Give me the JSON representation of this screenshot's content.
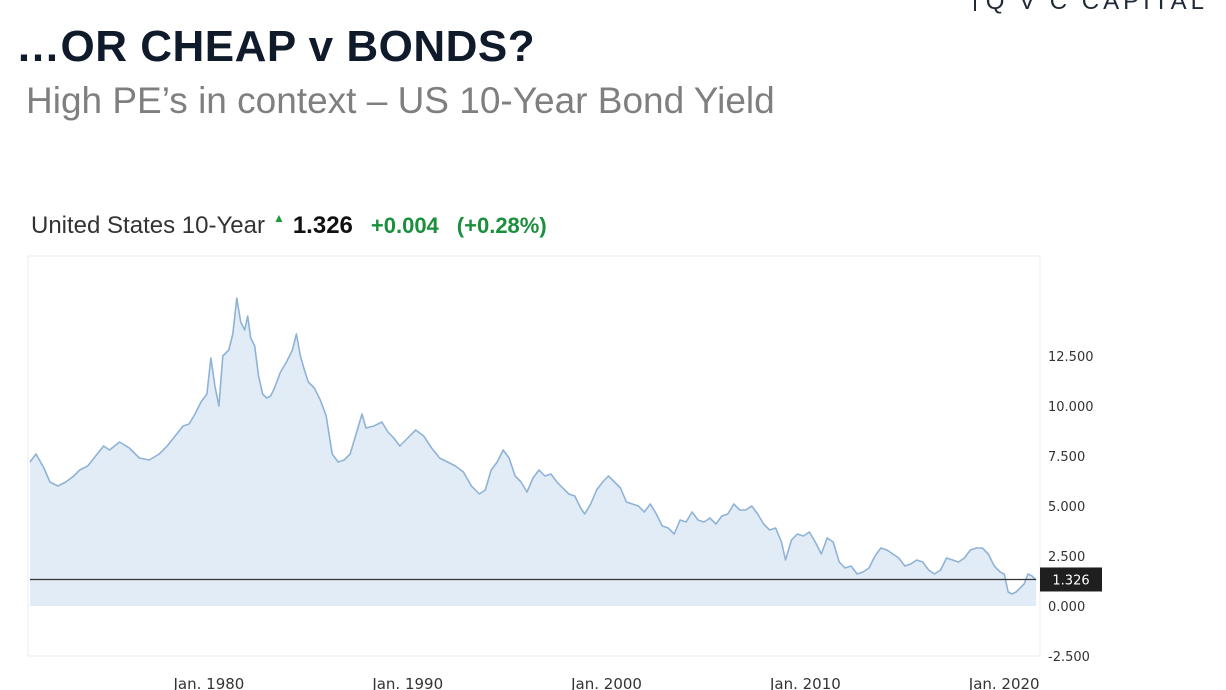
{
  "brand": "Q V C CAPITAL",
  "slide": {
    "title": "…OR CHEAP v BONDS?",
    "subtitle": "High PE’s in context – US 10-Year Bond Yield"
  },
  "quote": {
    "name": "United States 10-Year",
    "value": "1.326",
    "change": "+0.004",
    "change_pct": "(+0.28%)",
    "up_color": "#1a8f3c"
  },
  "chart_data": {
    "type": "area",
    "xlabel": "",
    "ylabel": "",
    "xlim": [
      1971.0,
      2021.6
    ],
    "ylim": [
      -2.5,
      17.5
    ],
    "y_ticks": [
      "12.500",
      "10.000",
      "7.500",
      "5.000",
      "2.500",
      "0.000",
      "-2.500"
    ],
    "y_tick_values": [
      12.5,
      10,
      7.5,
      5,
      2.5,
      0,
      -2.5
    ],
    "x_ticks": [
      "Jan. 1980",
      "Jan. 1990",
      "Jan. 2000",
      "Jan. 2010",
      "Jan. 2020"
    ],
    "x_tick_values": [
      1980,
      1990,
      2000,
      2010,
      2020
    ],
    "last_value": 1.326,
    "last_value_label": "1.326",
    "line_color": "#8fb3d6",
    "fill_color": "#dde9f4",
    "grid": false,
    "series": [
      {
        "x": [
          1971.0,
          1971.3,
          1971.7,
          1972.0,
          1972.4,
          1972.8,
          1973.2,
          1973.5,
          1973.9,
          1974.3,
          1974.7,
          1975.0,
          1975.5,
          1976.0,
          1976.5,
          1977.0,
          1977.5,
          1977.9,
          1978.3,
          1978.7,
          1979.0,
          1979.3,
          1979.6,
          1979.9,
          1980.1,
          1980.3,
          1980.5,
          1980.7,
          1981.0,
          1981.2,
          1981.4,
          1981.6,
          1981.8,
          1981.95,
          1982.1,
          1982.3,
          1982.5,
          1982.7,
          1982.9,
          1983.1,
          1983.3,
          1983.6,
          1983.9,
          1984.2,
          1984.4,
          1984.6,
          1984.8,
          1985.0,
          1985.3,
          1985.6,
          1985.9,
          1986.2,
          1986.5,
          1986.8,
          1987.1,
          1987.4,
          1987.7,
          1987.9,
          1988.3,
          1988.7,
          1989.0,
          1989.3,
          1989.6,
          1990.0,
          1990.4,
          1990.8,
          1991.2,
          1991.6,
          1992.0,
          1992.4,
          1992.8,
          1993.2,
          1993.6,
          1993.9,
          1994.2,
          1994.5,
          1994.8,
          1995.1,
          1995.4,
          1995.7,
          1996.0,
          1996.3,
          1996.6,
          1996.9,
          1997.2,
          1997.5,
          1997.8,
          1998.1,
          1998.4,
          1998.7,
          1998.9,
          1999.2,
          1999.5,
          1999.8,
          2000.1,
          2000.4,
          2000.7,
          2001.0,
          2001.3,
          2001.6,
          2001.9,
          2002.2,
          2002.5,
          2002.8,
          2003.1,
          2003.4,
          2003.7,
          2004.0,
          2004.3,
          2004.6,
          2004.9,
          2005.2,
          2005.5,
          2005.8,
          2006.1,
          2006.4,
          2006.7,
          2007.0,
          2007.3,
          2007.6,
          2007.9,
          2008.2,
          2008.5,
          2008.8,
          2009.0,
          2009.3,
          2009.6,
          2009.9,
          2010.2,
          2010.5,
          2010.8,
          2011.1,
          2011.4,
          2011.7,
          2012.0,
          2012.3,
          2012.6,
          2012.9,
          2013.2,
          2013.5,
          2013.8,
          2014.1,
          2014.4,
          2014.7,
          2015.0,
          2015.3,
          2015.6,
          2015.9,
          2016.2,
          2016.5,
          2016.8,
          2017.1,
          2017.4,
          2017.7,
          2018.0,
          2018.3,
          2018.6,
          2018.9,
          2019.2,
          2019.5,
          2019.8,
          2020.0,
          2020.2,
          2020.4,
          2020.6,
          2020.8,
          2021.0,
          2021.2,
          2021.4,
          2021.6
        ],
        "values": [
          7.2,
          7.6,
          6.9,
          6.2,
          6.0,
          6.2,
          6.5,
          6.8,
          7.0,
          7.5,
          8.0,
          7.8,
          8.2,
          7.9,
          7.4,
          7.3,
          7.6,
          8.0,
          8.5,
          9.0,
          9.1,
          9.6,
          10.2,
          10.6,
          12.4,
          11.0,
          10.0,
          12.5,
          12.8,
          13.6,
          15.4,
          14.2,
          13.8,
          14.5,
          13.4,
          13.0,
          11.5,
          10.6,
          10.4,
          10.5,
          10.9,
          11.7,
          12.2,
          12.8,
          13.6,
          12.5,
          11.8,
          11.2,
          10.9,
          10.3,
          9.5,
          7.6,
          7.2,
          7.3,
          7.6,
          8.6,
          9.6,
          8.9,
          9.0,
          9.2,
          8.7,
          8.4,
          8.0,
          8.4,
          8.8,
          8.5,
          7.9,
          7.4,
          7.2,
          7.0,
          6.7,
          6.0,
          5.6,
          5.8,
          6.8,
          7.2,
          7.8,
          7.4,
          6.5,
          6.2,
          5.7,
          6.4,
          6.8,
          6.5,
          6.6,
          6.2,
          5.9,
          5.6,
          5.5,
          4.9,
          4.6,
          5.1,
          5.8,
          6.2,
          6.5,
          6.2,
          5.9,
          5.2,
          5.1,
          5.0,
          4.7,
          5.1,
          4.6,
          4.0,
          3.9,
          3.6,
          4.3,
          4.2,
          4.7,
          4.3,
          4.2,
          4.4,
          4.1,
          4.5,
          4.6,
          5.1,
          4.8,
          4.8,
          5.0,
          4.6,
          4.1,
          3.8,
          3.9,
          3.2,
          2.3,
          3.3,
          3.6,
          3.5,
          3.7,
          3.2,
          2.6,
          3.4,
          3.2,
          2.2,
          1.9,
          2.0,
          1.6,
          1.7,
          1.9,
          2.5,
          2.9,
          2.8,
          2.6,
          2.4,
          2.0,
          2.1,
          2.3,
          2.2,
          1.8,
          1.6,
          1.8,
          2.4,
          2.3,
          2.2,
          2.4,
          2.8,
          2.9,
          2.9,
          2.6,
          2.0,
          1.7,
          1.6,
          0.7,
          0.6,
          0.7,
          0.9,
          1.1,
          1.6,
          1.5,
          1.3
        ]
      }
    ]
  }
}
